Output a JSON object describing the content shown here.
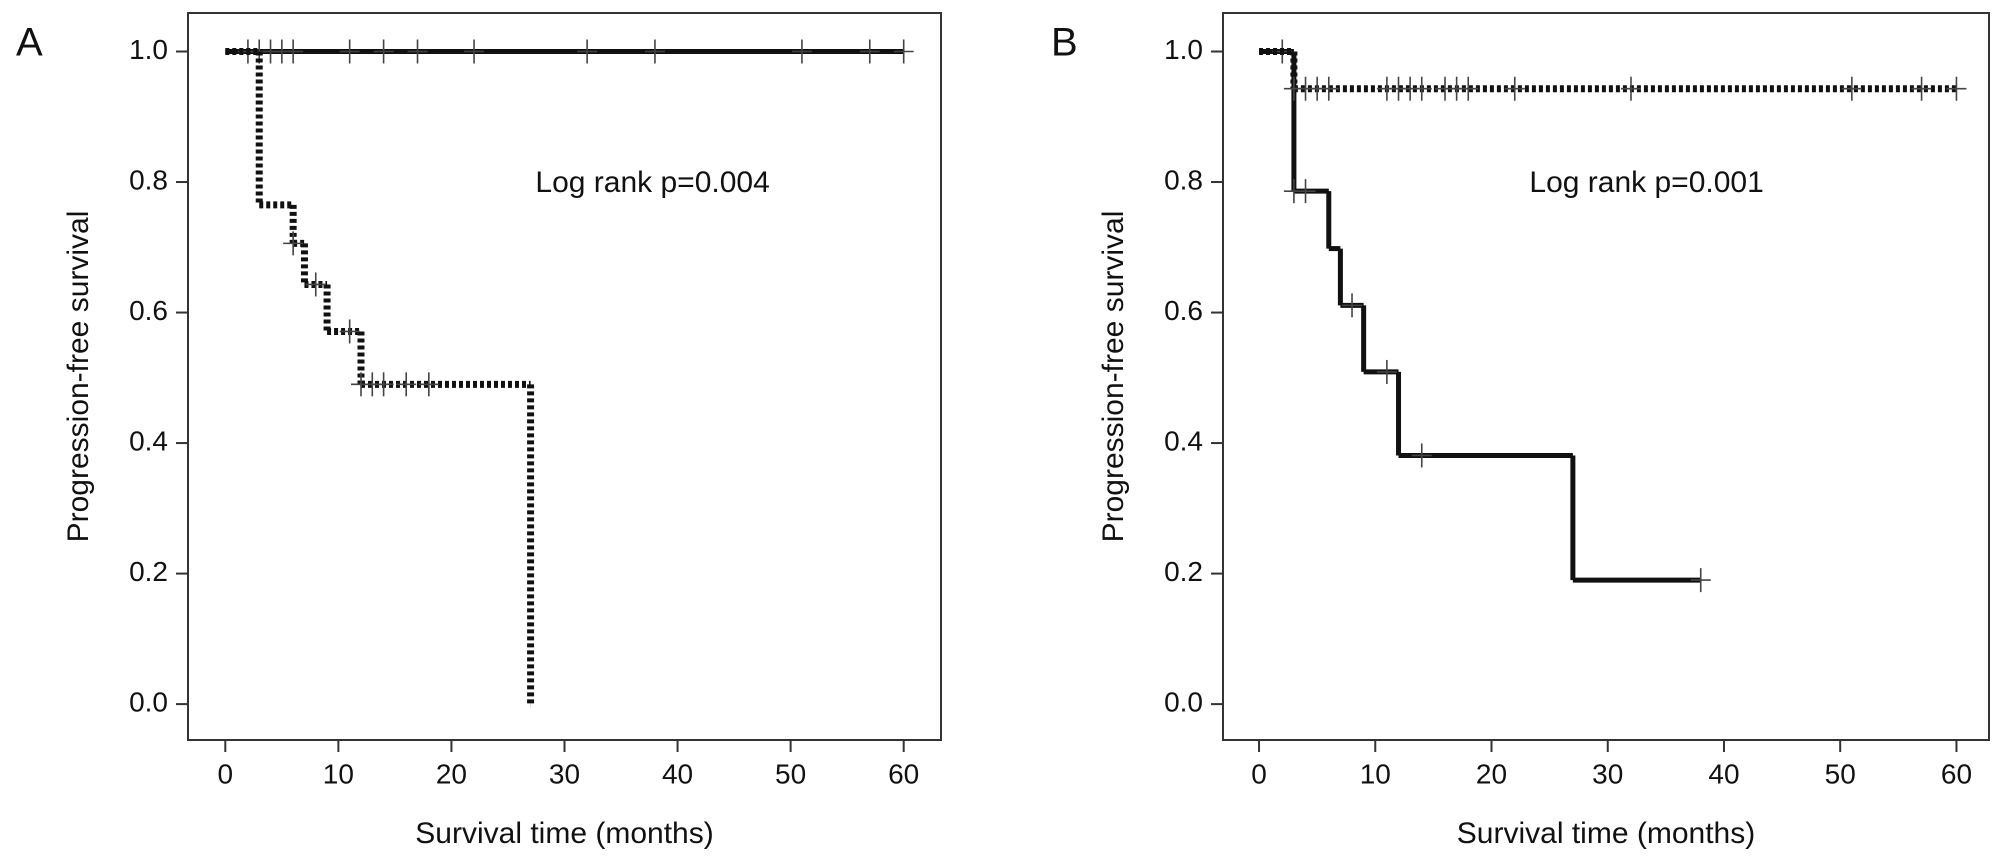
{
  "chart_data": [
    {
      "type": "step",
      "panel_label": "A",
      "xlabel": "Survival time (months)",
      "ylabel": "Progression-free survival",
      "annotation": "Log rank p=0.004",
      "xlim": [
        -3.3,
        63.3
      ],
      "ylim": [
        -0.055,
        1.059
      ],
      "xticks": [
        0,
        10,
        20,
        30,
        40,
        50,
        60
      ],
      "yticks": [
        {
          "value": 0,
          "label": "0.0"
        },
        {
          "value": 0.2,
          "label": "0.2"
        },
        {
          "value": 0.4,
          "label": "0.4"
        },
        {
          "value": 0.6,
          "label": "0.6"
        },
        {
          "value": 0.8,
          "label": "0.8"
        },
        {
          "value": 1,
          "label": "1.0"
        }
      ],
      "series": [
        {
          "color": "#111111",
          "style": "solid",
          "x": [
            0,
            60
          ],
          "values": [
            1.0,
            1.0
          ],
          "censored": {
            "x": [
              2,
              3,
              4,
              5,
              6,
              11,
              14,
              17,
              22,
              32,
              38,
              51,
              57,
              60
            ],
            "values": [
              1,
              1,
              1,
              1,
              1,
              1,
              1,
              1,
              1,
              1,
              1,
              1,
              1,
              1
            ]
          }
        },
        {
          "color": "#111111",
          "style": "dotted",
          "x": [
            0,
            3,
            6,
            7,
            9,
            12,
            27
          ],
          "values": [
            1.0,
            0.765,
            0.706,
            0.643,
            0.571,
            0.49,
            0.0
          ],
          "censored": {
            "x": [
              6,
              8,
              11,
              12,
              13,
              14,
              16,
              18
            ],
            "values": [
              0.706,
              0.643,
              0.571,
              0.49,
              0.49,
              0.49,
              0.49,
              0.49
            ]
          }
        }
      ]
    },
    {
      "type": "step",
      "panel_label": "B",
      "xlabel": "Survival time (months)",
      "ylabel": "Progression-free survival",
      "annotation": "Log rank p=0.001",
      "xlim": [
        -3.1,
        62.8
      ],
      "ylim": [
        -0.055,
        1.059
      ],
      "xticks": [
        0,
        10,
        20,
        30,
        40,
        50,
        60
      ],
      "yticks": [
        {
          "value": 0,
          "label": "0.0"
        },
        {
          "value": 0.2,
          "label": "0.2"
        },
        {
          "value": 0.4,
          "label": "0.4"
        },
        {
          "value": 0.6,
          "label": "0.6"
        },
        {
          "value": 0.8,
          "label": "0.8"
        },
        {
          "value": 1,
          "label": "1.0"
        }
      ],
      "series": [
        {
          "color": "#111111",
          "style": "solid",
          "x": [
            0,
            3,
            6,
            7,
            9,
            12,
            27,
            38
          ],
          "values": [
            1.0,
            0.786,
            0.698,
            0.611,
            0.509,
            0.381,
            0.19,
            0.19
          ],
          "censored": {
            "x": [
              2,
              3,
              4,
              8,
              11,
              14,
              38
            ],
            "values": [
              1.0,
              0.786,
              0.786,
              0.611,
              0.509,
              0.381,
              0.19
            ]
          }
        },
        {
          "color": "#111111",
          "style": "dotted",
          "x": [
            0,
            3,
            60
          ],
          "values": [
            1.0,
            0.943,
            0.943
          ],
          "censored": {
            "x": [
              3,
              4,
              5,
              6,
              11,
              12,
              13,
              14,
              16,
              17,
              18,
              22,
              32,
              51,
              57,
              60
            ],
            "values": [
              0.943,
              0.943,
              0.943,
              0.943,
              0.943,
              0.943,
              0.943,
              0.943,
              0.943,
              0.943,
              0.943,
              0.943,
              0.943,
              0.943,
              0.943,
              0.943
            ]
          }
        }
      ]
    }
  ]
}
